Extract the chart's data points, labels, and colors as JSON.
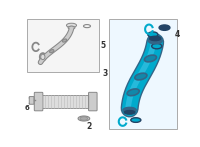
{
  "bg_color": "#ffffff",
  "tube_color": "#00aacc",
  "tube_color_dark": "#0088aa",
  "clamp_color": "#888888",
  "text_color": "#333333",
  "box_edge": "#aaaaaa",
  "box_fill_left": "#f5f5f5",
  "box_fill_right": "#eef8ff",
  "gray_part": "#cccccc",
  "gray_dark": "#999999",
  "blue_dark": "#336688",
  "blue_mid": "#1188aa",
  "blue_highlight": "#55ccee"
}
